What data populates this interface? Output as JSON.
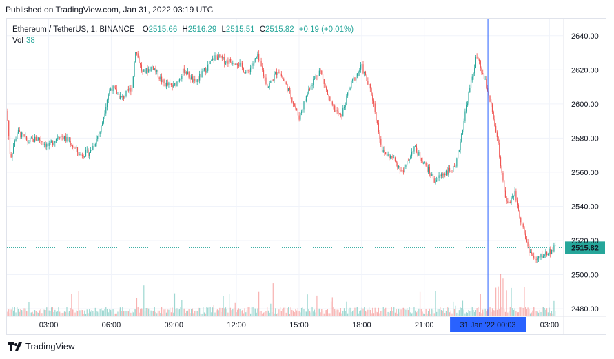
{
  "published": "Published on TradingView.com, Jan 31, 2022 03:19 UTC",
  "legend": {
    "symbol": "Ethereum / TetherUS, 1, BINANCE",
    "o_label": "O",
    "o": "2515.66",
    "h_label": "H",
    "h": "2516.29",
    "l_label": "L",
    "l": "2515.51",
    "c_label": "C",
    "c": "2515.82",
    "change": "+0.19 (+0.01%)",
    "vol_label": "Vol",
    "vol": "38"
  },
  "footer": {
    "brand": "TradingView"
  },
  "colors": {
    "up": "#26a69a",
    "down": "#ef5350",
    "crosshair": "#2962ff",
    "grid": "#f0f3fa",
    "frame": "#e0e3eb"
  },
  "chart_data": {
    "type": "candlestick",
    "symbol": "ETH/USDT",
    "interval": "1",
    "ylim": [
      2476,
      2650
    ],
    "yticks": [
      2480,
      2500,
      2520,
      2540,
      2560,
      2580,
      2600,
      2620,
      2640
    ],
    "ytick_labels": [
      "2480.00",
      "2500.00",
      "2520.00",
      "2540.00",
      "2560.00",
      "2580.00",
      "2600.00",
      "2620.00",
      "2640.00"
    ],
    "xticks": [
      "03:00",
      "06:00",
      "09:00",
      "12:00",
      "15:00",
      "18:00",
      "21:00",
      "00:03",
      "03:00"
    ],
    "x_start": "Jan 30, 2022 01:00 UTC",
    "x_end": "Jan 31, 2022 03:19 UTC",
    "close_path": [
      [
        "01:00",
        2596
      ],
      [
        "01:10",
        2568
      ],
      [
        "01:30",
        2584
      ],
      [
        "02:00",
        2578
      ],
      [
        "02:30",
        2580
      ],
      [
        "03:00",
        2575
      ],
      [
        "03:30",
        2582
      ],
      [
        "04:00",
        2578
      ],
      [
        "04:30",
        2570
      ],
      [
        "05:00",
        2572
      ],
      [
        "05:30",
        2585
      ],
      [
        "05:50",
        2605
      ],
      [
        "06:00",
        2610
      ],
      [
        "06:30",
        2603
      ],
      [
        "07:00",
        2610
      ],
      [
        "07:10",
        2632
      ],
      [
        "07:30",
        2618
      ],
      [
        "08:00",
        2622
      ],
      [
        "08:30",
        2612
      ],
      [
        "09:00",
        2610
      ],
      [
        "09:30",
        2620
      ],
      [
        "10:00",
        2612
      ],
      [
        "10:30",
        2620
      ],
      [
        "11:00",
        2628
      ],
      [
        "11:30",
        2625
      ],
      [
        "12:00",
        2625
      ],
      [
        "12:30",
        2618
      ],
      [
        "13:00",
        2628
      ],
      [
        "13:30",
        2610
      ],
      [
        "14:00",
        2620
      ],
      [
        "14:30",
        2608
      ],
      [
        "15:00",
        2592
      ],
      [
        "15:30",
        2610
      ],
      [
        "16:00",
        2620
      ],
      [
        "16:30",
        2600
      ],
      [
        "17:00",
        2592
      ],
      [
        "17:30",
        2612
      ],
      [
        "18:00",
        2622
      ],
      [
        "18:30",
        2605
      ],
      [
        "19:00",
        2572
      ],
      [
        "19:30",
        2568
      ],
      [
        "20:00",
        2560
      ],
      [
        "20:30",
        2575
      ],
      [
        "21:00",
        2565
      ],
      [
        "21:30",
        2555
      ],
      [
        "22:00",
        2560
      ],
      [
        "22:30",
        2562
      ],
      [
        "23:00",
        2598
      ],
      [
        "23:30",
        2628
      ],
      [
        "00:03",
        2608
      ],
      [
        "00:30",
        2580
      ],
      [
        "00:45",
        2555
      ],
      [
        "01:00",
        2540
      ],
      [
        "01:20",
        2548
      ],
      [
        "01:40",
        2530
      ],
      [
        "02:00",
        2515
      ],
      [
        "02:20",
        2508
      ],
      [
        "02:45",
        2512
      ],
      [
        "03:19",
        2515.82
      ]
    ],
    "last_price": 2515.82,
    "last_price_label": "2515.82",
    "crosshair": {
      "time": "00:03",
      "date_label": "31 Jan '22"
    },
    "volume": {
      "last": 38
    }
  }
}
